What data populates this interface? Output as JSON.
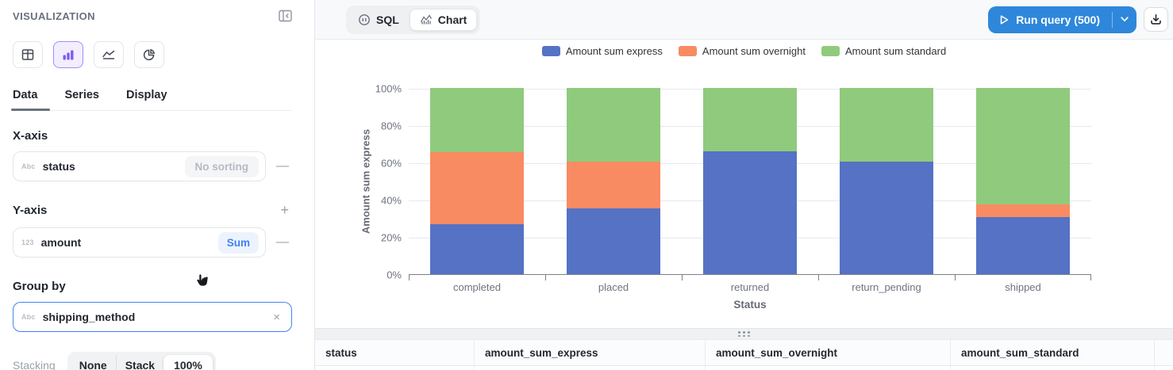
{
  "sidebar": {
    "title": "VISUALIZATION",
    "chart_types": [
      {
        "name": "table",
        "selected": false
      },
      {
        "name": "bar",
        "selected": true
      },
      {
        "name": "line",
        "selected": false
      },
      {
        "name": "pie",
        "selected": false
      }
    ],
    "tabs": [
      {
        "label": "Data",
        "active": true
      },
      {
        "label": "Series",
        "active": false
      },
      {
        "label": "Display",
        "active": false
      }
    ],
    "x_axis": {
      "heading": "X-axis",
      "field": "status",
      "field_type_glyph": "Abc",
      "sort_label": "No sorting",
      "remove_glyph": "—"
    },
    "y_axis": {
      "heading": "Y-axis",
      "add_glyph": "+",
      "field": "amount",
      "field_type_glyph": "123",
      "aggregation_label": "Sum",
      "remove_glyph": "—"
    },
    "group_by": {
      "heading": "Group by",
      "field": "shipping_method",
      "field_type_glyph": "Abc",
      "close_glyph": "×"
    },
    "stacking": {
      "label": "Stacking",
      "options": [
        "None",
        "Stack",
        "100%"
      ],
      "selected": "100%"
    }
  },
  "topbar": {
    "sql_label": "SQL",
    "chart_label": "Chart",
    "run_label": "Run query (500)"
  },
  "chart_data": {
    "type": "bar",
    "stacked": "100%",
    "title": "",
    "categories": [
      "completed",
      "placed",
      "returned",
      "return_pending",
      "shipped"
    ],
    "series": [
      {
        "name": "Amount sum express",
        "color": "#5572c4",
        "values": [
          27,
          35.5,
          66,
          60.5,
          30.5
        ]
      },
      {
        "name": "Amount sum overnight",
        "color": "#f98b62",
        "values": [
          38.5,
          25,
          0,
          0,
          7
        ]
      },
      {
        "name": "Amount sum standard",
        "color": "#90ca7d",
        "values": [
          34.5,
          39.5,
          34,
          39.5,
          62.5
        ]
      }
    ],
    "xlabel": "Status",
    "ylabel": "Amount sum express",
    "y_ticks": [
      "0%",
      "20%",
      "40%",
      "60%",
      "80%",
      "100%"
    ],
    "ylim": [
      0,
      100
    ],
    "value_unit": "percent_of_category_total",
    "legend_position": "top",
    "grid": true
  },
  "table": {
    "headers": [
      "status",
      "amount_sum_express",
      "amount_sum_overnight",
      "amount_sum_standard"
    ]
  },
  "colors": {
    "accent_purple": "#7c5cf0",
    "selection_blue": "#3f85f4",
    "run_button_blue": "#2e87db",
    "topbar_bg": "#f8f9fa",
    "gridline": "#e4e9f2",
    "axis_text": "#6e7380"
  }
}
